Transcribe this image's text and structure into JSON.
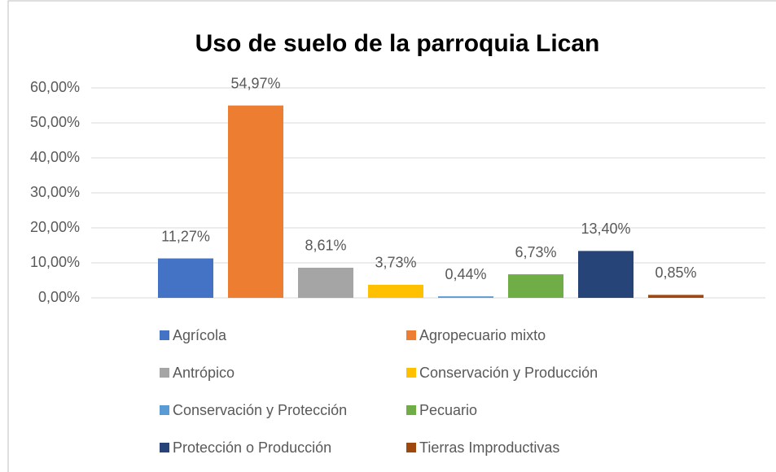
{
  "chart_data": {
    "type": "bar",
    "title": "Uso de suelo de la parroquia Lican",
    "ylim": [
      0,
      60
    ],
    "yticks": [
      {
        "value": 0,
        "label": "0,00%"
      },
      {
        "value": 10,
        "label": "10,00%"
      },
      {
        "value": 20,
        "label": "20,00%"
      },
      {
        "value": 30,
        "label": "30,00%"
      },
      {
        "value": 40,
        "label": "40,00%"
      },
      {
        "value": 50,
        "label": "50,00%"
      },
      {
        "value": 60,
        "label": "60,00%"
      }
    ],
    "grid": true,
    "legend": "bottom",
    "series": [
      {
        "name": "Agrícola",
        "color": "#4472c4",
        "values": [
          11.27
        ],
        "value_labels": [
          "11,27%"
        ]
      },
      {
        "name": "Agropecuario mixto",
        "color": "#ed7d31",
        "values": [
          54.97
        ],
        "value_labels": [
          "54,97%"
        ]
      },
      {
        "name": "Antrópico",
        "color": "#a5a5a5",
        "values": [
          8.61
        ],
        "value_labels": [
          "8,61%"
        ]
      },
      {
        "name": "Conservación y Producción",
        "color": "#ffc000",
        "values": [
          3.73
        ],
        "value_labels": [
          "3,73%"
        ]
      },
      {
        "name": "Conservación y Protección",
        "color": "#5b9bd5",
        "values": [
          0.44
        ],
        "value_labels": [
          "0,44%"
        ]
      },
      {
        "name": "Pecuario",
        "color": "#70ad47",
        "values": [
          6.73
        ],
        "value_labels": [
          "6,73%"
        ]
      },
      {
        "name": "Protección o Producción",
        "color": "#264478",
        "values": [
          13.4
        ],
        "value_labels": [
          "13,40%"
        ]
      },
      {
        "name": "Tierras Improductivas",
        "color": "#9e480e",
        "values": [
          0.85
        ],
        "value_labels": [
          "0,85%"
        ]
      }
    ]
  }
}
